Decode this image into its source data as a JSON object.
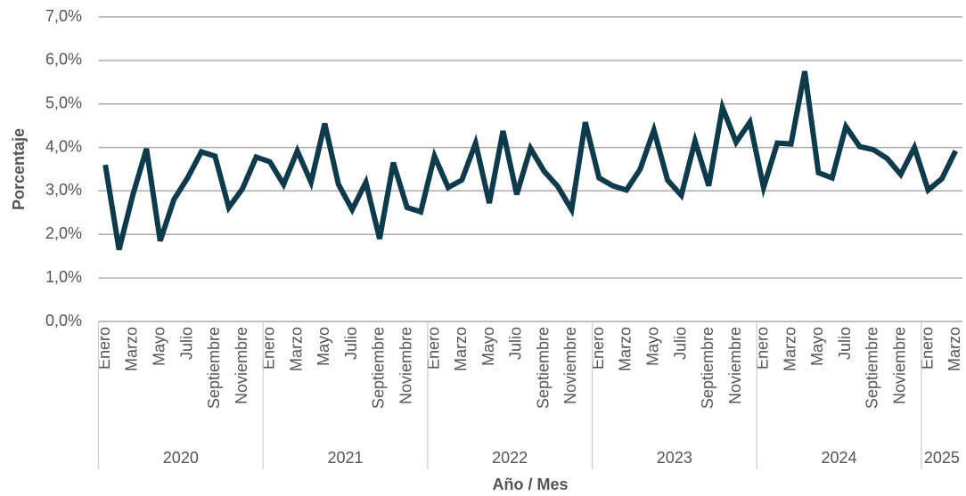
{
  "chart_data": {
    "type": "line",
    "y_label": "Porcentaje",
    "x_label": "Año / Mes",
    "categories": [
      "Enero",
      null,
      "Marzo",
      null,
      "Mayo",
      null,
      "Julio",
      null,
      "Septiembre",
      null,
      "Noviembre",
      null,
      "Enero",
      null,
      "Marzo",
      null,
      "Mayo",
      null,
      "Julio",
      null,
      "Septiembre",
      null,
      "Noviembre",
      null,
      "Enero",
      null,
      "Marzo",
      null,
      "Mayo",
      null,
      "Julio",
      null,
      "Septiembre",
      null,
      "Noviembre",
      null,
      "Enero",
      null,
      "Marzo",
      null,
      "Mayo",
      null,
      "Julio",
      null,
      "Septiembre",
      null,
      "Noviembre",
      null,
      "Enero",
      null,
      "Marzo",
      null,
      "Mayo",
      null,
      "Julio",
      null,
      "Septiembre",
      null,
      "Noviembre",
      null,
      "Enero",
      null,
      "Marzo"
    ],
    "years": [
      "2020",
      "2021",
      "2022",
      "2023",
      "2024",
      "2025"
    ],
    "values": [
      3.6,
      1.65,
      2.9,
      3.97,
      1.85,
      2.8,
      3.3,
      3.9,
      3.8,
      2.62,
      3.05,
      3.78,
      3.67,
      3.15,
      3.92,
      3.2,
      4.55,
      3.15,
      2.57,
      3.2,
      1.9,
      3.65,
      2.62,
      2.52,
      3.8,
      3.08,
      3.25,
      4.1,
      2.72,
      4.38,
      2.92,
      3.98,
      3.45,
      3.1,
      2.57,
      4.58,
      3.3,
      3.12,
      3.02,
      3.5,
      4.4,
      3.25,
      2.9,
      4.15,
      3.12,
      4.92,
      4.12,
      4.58,
      3.08,
      4.1,
      4.08,
      5.75,
      3.42,
      3.3,
      4.48,
      4.02,
      3.95,
      3.75,
      3.38,
      4.0,
      3.02,
      3.28,
      3.92
    ],
    "color": "#0e3b4b",
    "ylim": [
      0,
      7
    ],
    "yticks": [
      {
        "value": 0,
        "label": "0,0%"
      },
      {
        "value": 1,
        "label": "1,0%"
      },
      {
        "value": 2,
        "label": "2,0%"
      },
      {
        "value": 3,
        "label": "3,0%"
      },
      {
        "value": 4,
        "label": "4,0%"
      },
      {
        "value": 5,
        "label": "5,0%"
      },
      {
        "value": 6,
        "label": "6,0%"
      },
      {
        "value": 7,
        "label": "7,0%"
      }
    ],
    "grid": true
  }
}
